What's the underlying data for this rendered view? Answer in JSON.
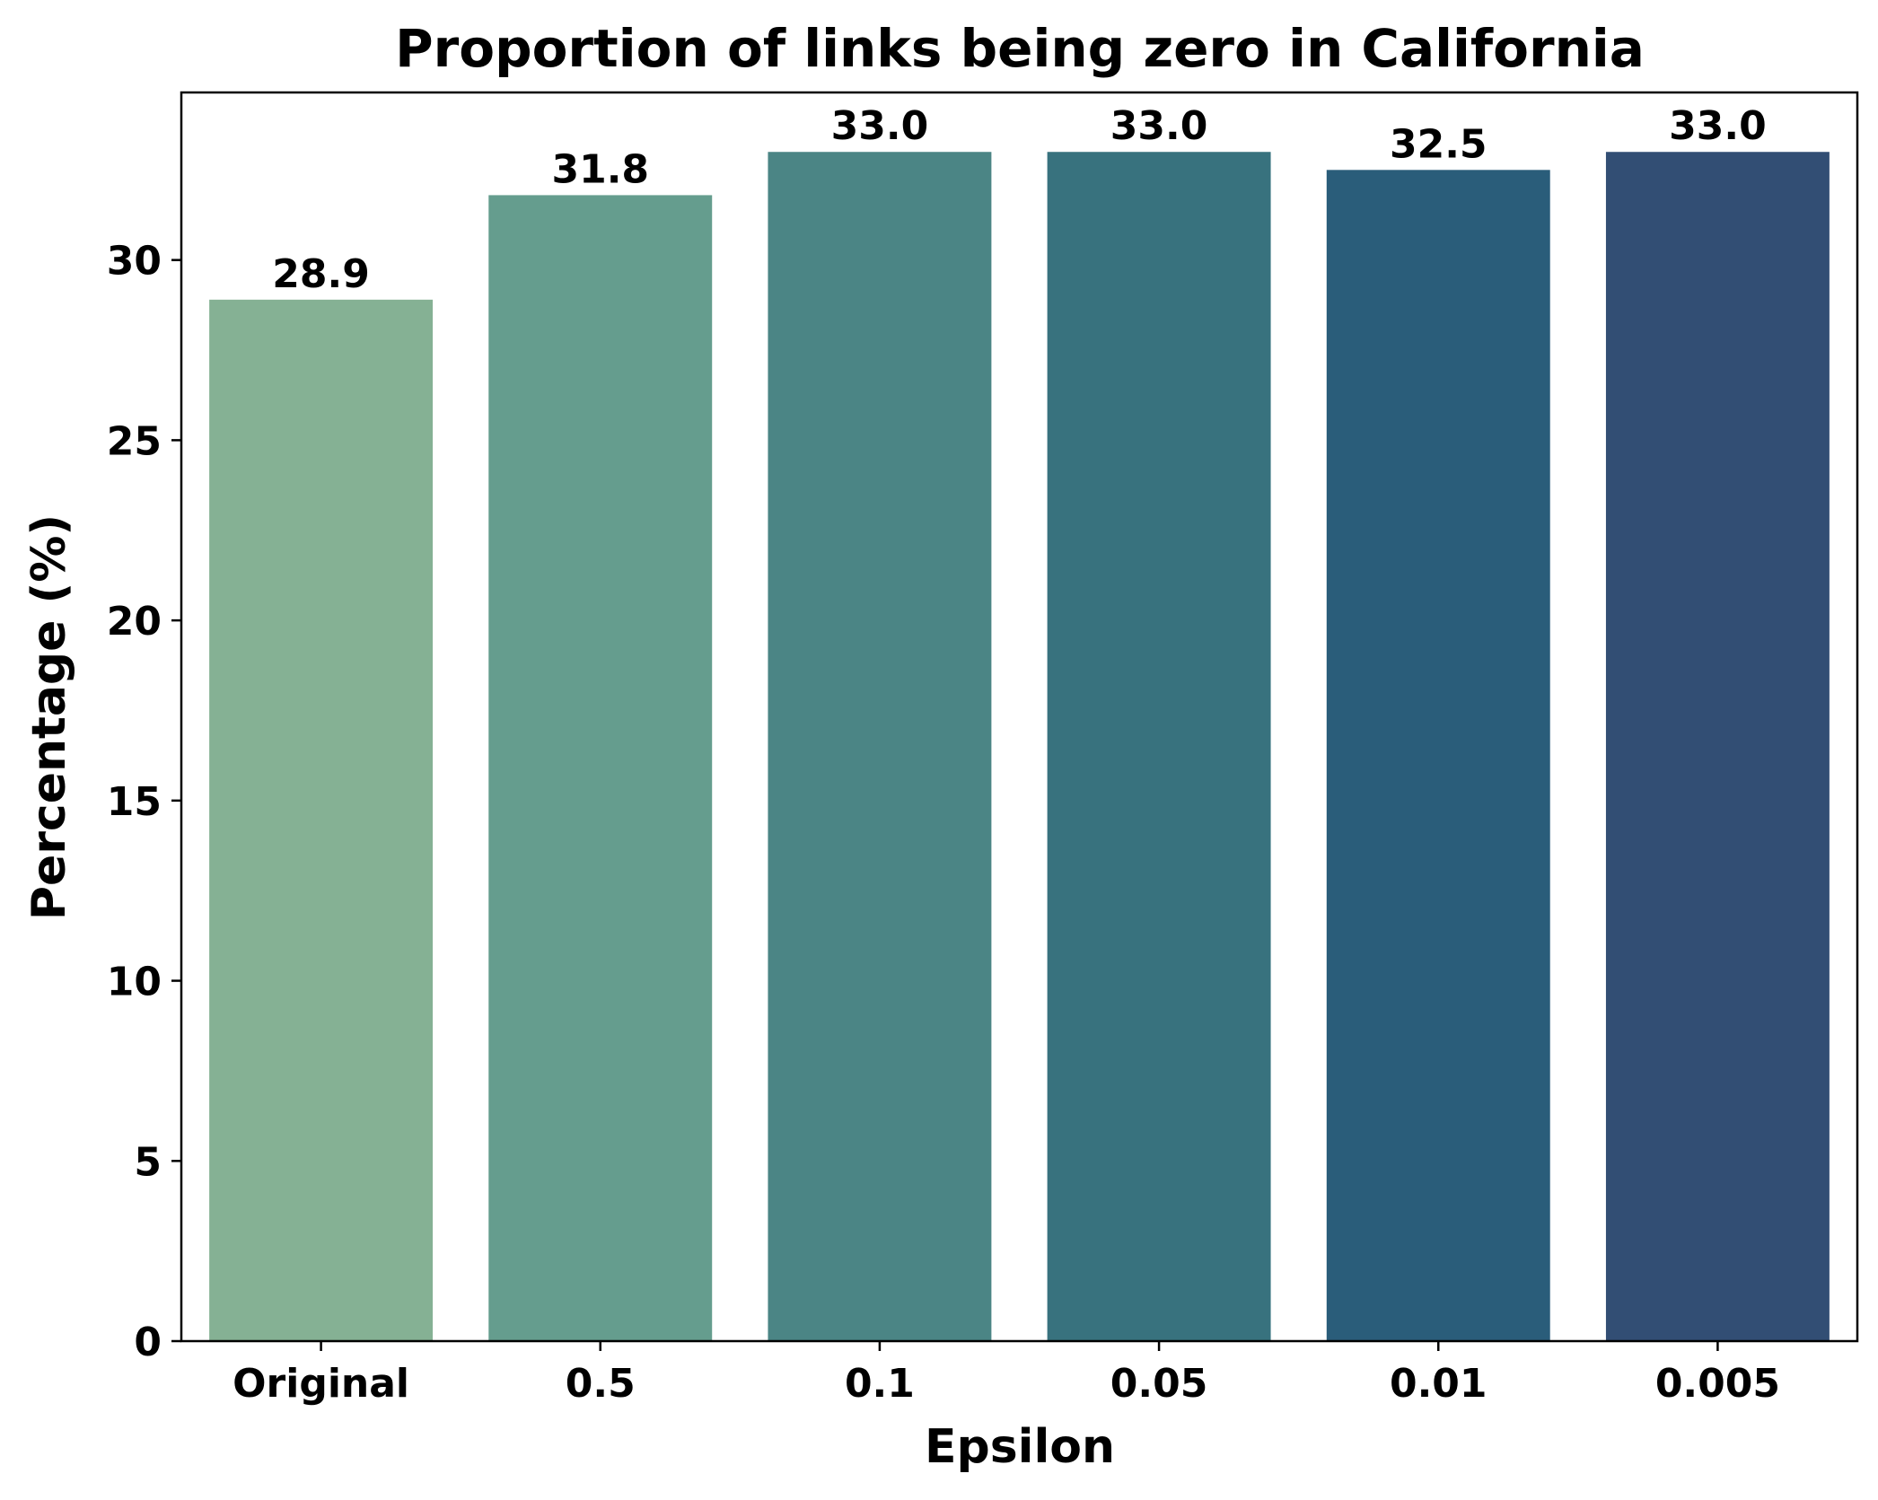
{
  "chart_data": {
    "type": "bar",
    "title": "Proportion of links being zero in California",
    "xlabel": "Epsilon",
    "ylabel": "Percentage (%)",
    "categories": [
      "Original",
      "0.5",
      "0.1",
      "0.05",
      "0.01",
      "0.005"
    ],
    "values": [
      28.9,
      31.8,
      33.0,
      33.0,
      32.5,
      33.0
    ],
    "value_labels": [
      "28.9",
      "31.8",
      "33.0",
      "33.0",
      "32.5",
      "33.0"
    ],
    "bar_colors": [
      "#85b194",
      "#659d8e",
      "#4b8585",
      "#38727e",
      "#2a5d7a",
      "#324e74"
    ],
    "ylim": [
      0,
      34.65
    ],
    "yticks": [
      0,
      5,
      10,
      15,
      20,
      25,
      30
    ],
    "grid": false,
    "legend": false
  }
}
